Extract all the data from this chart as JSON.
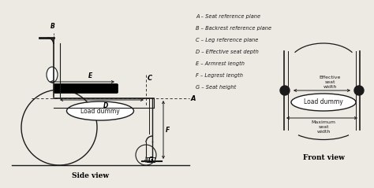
{
  "bg_color": "#edeae4",
  "line_color": "#1a1a1a",
  "legend_items": [
    "A – Seat reference plane",
    "B – Backrest reference plane",
    "C – Leg reference plane",
    "D – Effective seat depth",
    "E – Armrest length",
    "F – Legrest length",
    "G – Seat height"
  ],
  "side_view_label": "Side view",
  "front_view_label": "Front view",
  "load_dummy_label": "Load dummy"
}
